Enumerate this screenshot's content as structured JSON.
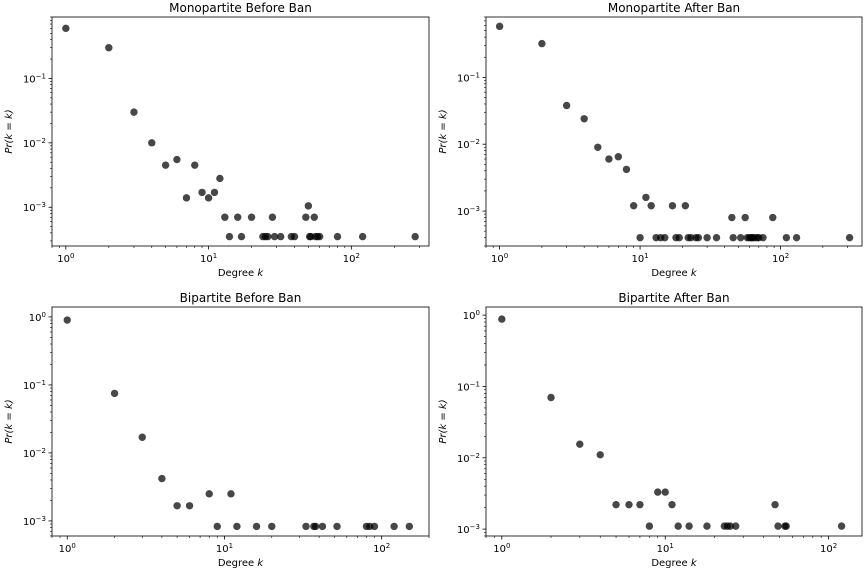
{
  "chart_data": [
    {
      "type": "scatter",
      "title": "Monopartite Before Ban",
      "xlabel": "Degree k",
      "ylabel": "Pr(k = k)",
      "xscale": "log",
      "yscale": "log",
      "xlim": [
        0.8,
        350
      ],
      "ylim": [
        0.00025,
        0.9
      ],
      "xticks": [
        {
          "v": 1,
          "label": "10^0"
        },
        {
          "v": 10,
          "label": "10^1"
        },
        {
          "v": 100,
          "label": "10^2"
        }
      ],
      "yticks": [
        {
          "v": 0.001,
          "label": "10^-3"
        },
        {
          "v": 0.01,
          "label": "10^-2"
        },
        {
          "v": 0.1,
          "label": "10^-1"
        }
      ],
      "color": "#000000",
      "grid": false,
      "x": [
        1,
        2,
        3,
        4,
        5,
        6,
        7,
        8,
        9,
        10,
        11,
        12,
        13,
        14,
        16,
        17,
        20,
        24,
        25,
        26,
        28,
        29,
        32,
        38,
        40,
        48,
        50,
        51,
        52,
        55,
        56,
        58,
        60,
        80,
        120,
        280
      ],
      "y": [
        0.6,
        0.3,
        0.03,
        0.01,
        0.0045,
        0.0055,
        0.0014,
        0.0045,
        0.0017,
        0.0014,
        0.0017,
        0.0028,
        0.0007,
        0.00035,
        0.0007,
        0.00035,
        0.0007,
        0.00035,
        0.00035,
        0.00035,
        0.0007,
        0.00035,
        0.00035,
        0.00035,
        0.00035,
        0.0007,
        0.00105,
        0.00035,
        0.00035,
        0.0007,
        0.00035,
        0.00035,
        0.00035,
        0.00035,
        0.00035,
        0.00035
      ]
    },
    {
      "type": "scatter",
      "title": "Monopartite After Ban",
      "xlabel": "Degree k",
      "ylabel": "Pr(k = k)",
      "xscale": "log",
      "yscale": "log",
      "xlim": [
        0.8,
        380
      ],
      "ylim": [
        0.0003,
        0.8
      ],
      "xticks": [
        {
          "v": 1,
          "label": "10^0"
        },
        {
          "v": 10,
          "label": "10^1"
        },
        {
          "v": 100,
          "label": "10^2"
        }
      ],
      "yticks": [
        {
          "v": 0.001,
          "label": "10^-3"
        },
        {
          "v": 0.01,
          "label": "10^-2"
        },
        {
          "v": 0.1,
          "label": "10^-1"
        }
      ],
      "color": "#000000",
      "grid": false,
      "x": [
        1,
        2,
        3,
        4,
        5,
        6,
        7,
        8,
        9,
        10,
        11,
        12,
        13,
        14,
        15,
        17,
        18,
        19,
        21,
        22,
        23,
        25,
        26,
        30,
        35,
        45,
        46,
        52,
        56,
        58,
        60,
        62,
        63,
        65,
        68,
        70,
        75,
        88,
        110,
        130,
        310
      ],
      "y": [
        0.58,
        0.32,
        0.038,
        0.024,
        0.009,
        0.006,
        0.0065,
        0.0042,
        0.0012,
        0.0004,
        0.0016,
        0.0012,
        0.0004,
        0.0004,
        0.0004,
        0.0012,
        0.0004,
        0.0004,
        0.0012,
        0.0004,
        0.0004,
        0.0004,
        0.0004,
        0.0004,
        0.0004,
        0.0008,
        0.0004,
        0.0004,
        0.0008,
        0.0004,
        0.0004,
        0.0004,
        0.0004,
        0.0004,
        0.0004,
        0.0004,
        0.0004,
        0.0008,
        0.0004,
        0.0004,
        0.0004
      ]
    },
    {
      "type": "scatter",
      "title": "Bipartite Before Ban",
      "xlabel": "Degree k",
      "ylabel": "Pr(k = k)",
      "xscale": "log",
      "yscale": "log",
      "xlim": [
        0.8,
        200
      ],
      "ylim": [
        0.0006,
        1.4
      ],
      "xticks": [
        {
          "v": 1,
          "label": "10^0"
        },
        {
          "v": 10,
          "label": "10^1"
        },
        {
          "v": 100,
          "label": "10^2"
        }
      ],
      "yticks": [
        {
          "v": 0.001,
          "label": "10^-3"
        },
        {
          "v": 0.01,
          "label": "10^-2"
        },
        {
          "v": 0.1,
          "label": "10^-1"
        },
        {
          "v": 1,
          "label": "10^0"
        }
      ],
      "color": "#000000",
      "grid": false,
      "x": [
        1,
        2,
        3,
        4,
        5,
        6,
        8,
        9,
        11,
        12,
        16,
        20,
        33,
        37,
        38,
        42,
        52,
        80,
        84,
        90,
        120,
        150
      ],
      "y": [
        0.9,
        0.075,
        0.017,
        0.0042,
        0.00167,
        0.00167,
        0.0025,
        0.00083,
        0.0025,
        0.00083,
        0.00083,
        0.00083,
        0.00083,
        0.00083,
        0.00083,
        0.00083,
        0.00083,
        0.00083,
        0.00083,
        0.00083,
        0.00083,
        0.00083
      ]
    },
    {
      "type": "scatter",
      "title": "Bipartite After Ban",
      "xlabel": "Degree k",
      "ylabel": "Pr(k = k)",
      "xscale": "log",
      "yscale": "log",
      "xlim": [
        0.8,
        160
      ],
      "ylim": [
        0.0008,
        1.3
      ],
      "xticks": [
        {
          "v": 1,
          "label": "10^0"
        },
        {
          "v": 10,
          "label": "10^1"
        },
        {
          "v": 100,
          "label": "10^2"
        }
      ],
      "yticks": [
        {
          "v": 0.001,
          "label": "10^-3"
        },
        {
          "v": 0.01,
          "label": "10^-2"
        },
        {
          "v": 0.1,
          "label": "10^-1"
        },
        {
          "v": 1,
          "label": "10^0"
        }
      ],
      "color": "#000000",
      "grid": false,
      "x": [
        1,
        2,
        3,
        4,
        5,
        6,
        7,
        8,
        9,
        10,
        11,
        12,
        14,
        18,
        23,
        24,
        25,
        27,
        47,
        49,
        54,
        55,
        120
      ],
      "y": [
        0.88,
        0.07,
        0.0155,
        0.011,
        0.0022,
        0.0022,
        0.0022,
        0.0011,
        0.0033,
        0.0033,
        0.0022,
        0.0011,
        0.0011,
        0.0011,
        0.0011,
        0.0011,
        0.0011,
        0.0011,
        0.0022,
        0.0011,
        0.0011,
        0.0011,
        0.0011
      ]
    }
  ]
}
